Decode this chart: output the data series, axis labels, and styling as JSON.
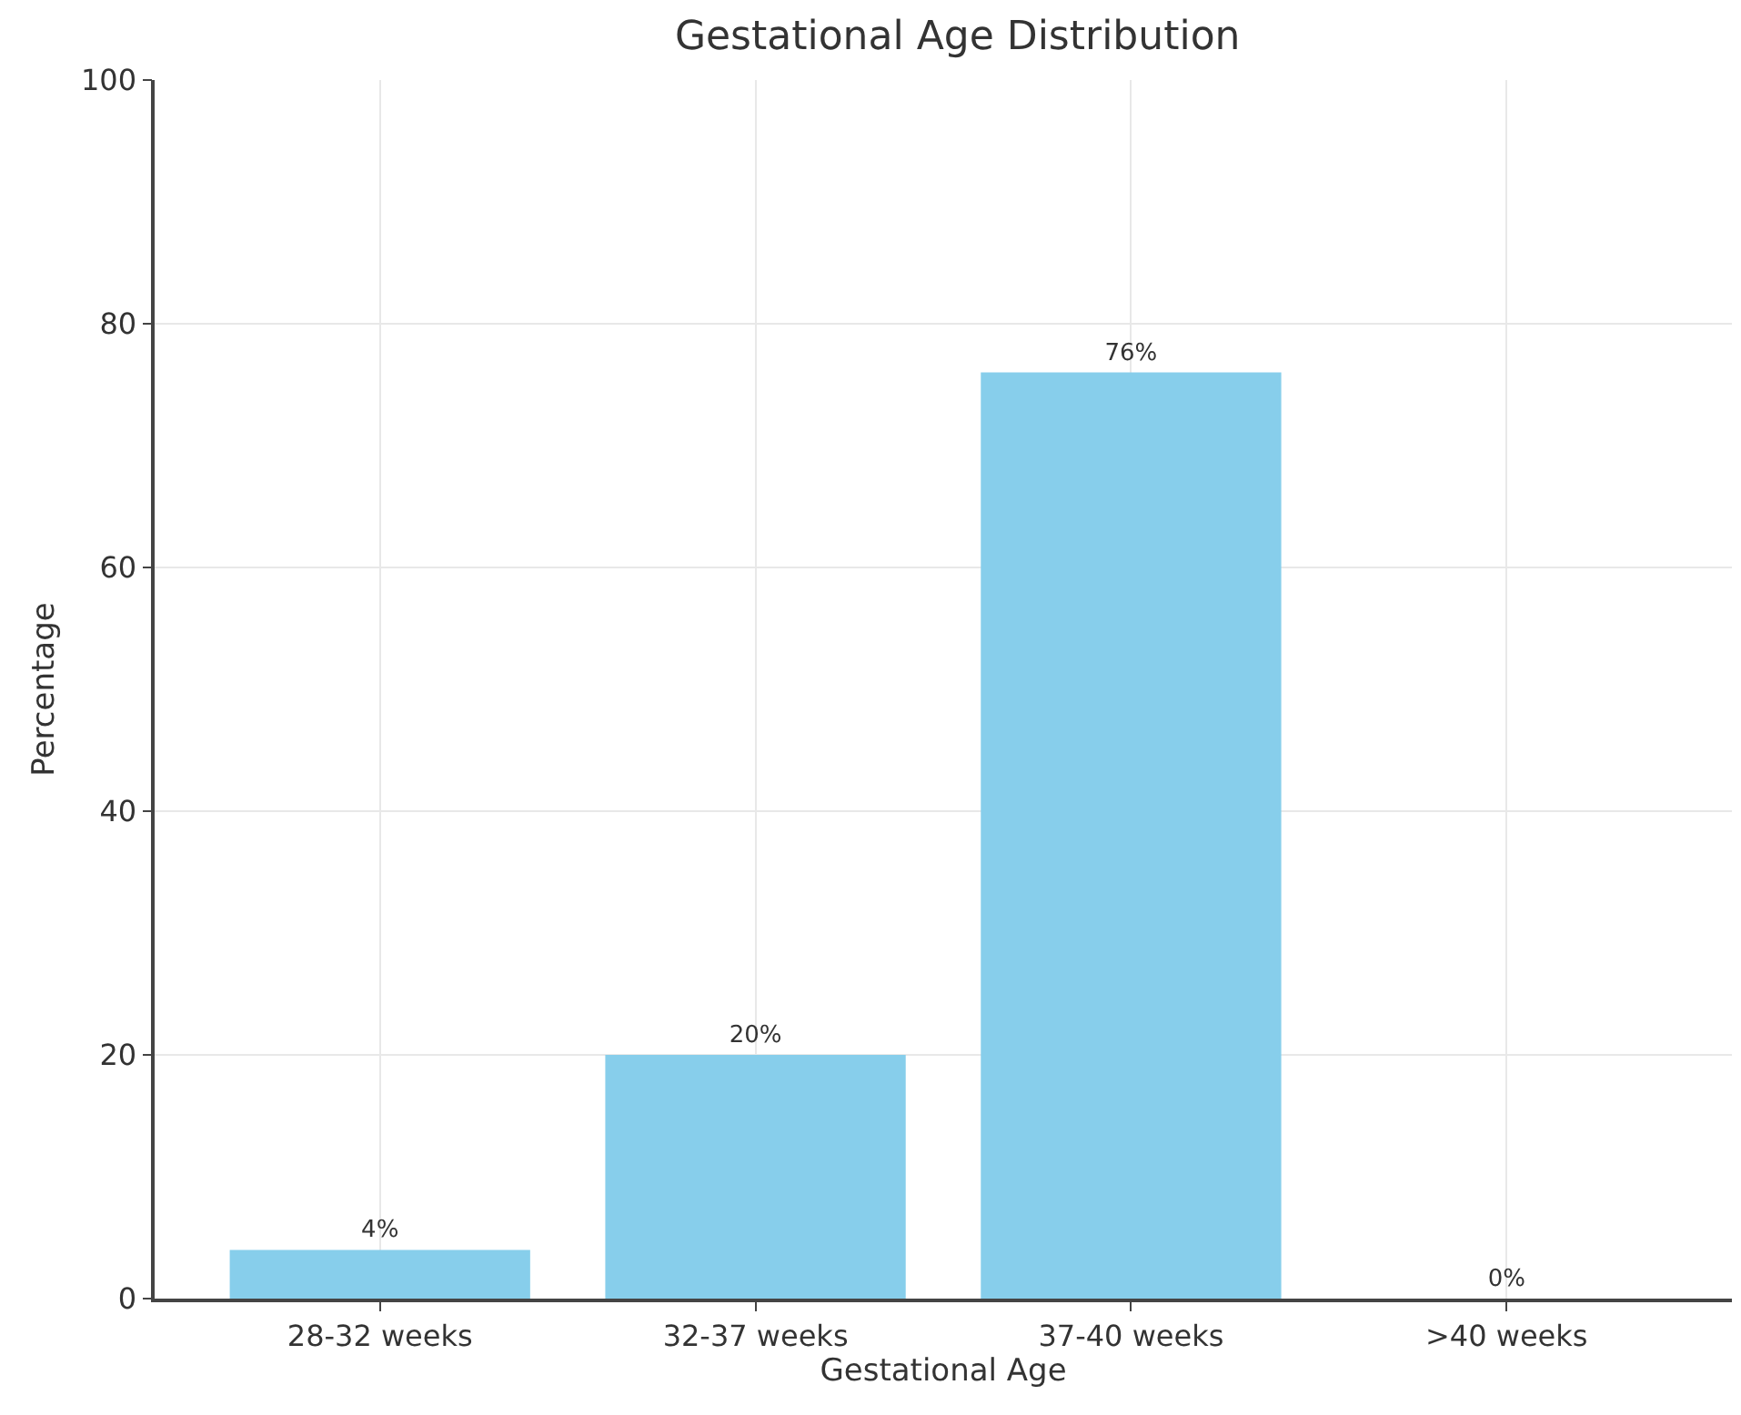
{
  "chart_data": {
    "type": "bar",
    "title": "Gestational Age Distribution",
    "xlabel": "Gestational Age",
    "ylabel": "Percentage",
    "categories": [
      "28-32 weeks",
      "32-37 weeks",
      "37-40 weeks",
      ">40 weeks"
    ],
    "values": [
      4,
      20,
      76,
      0
    ],
    "value_labels": [
      "4%",
      "20%",
      "76%",
      "0%"
    ],
    "color": "#87ceeb",
    "ylim": [
      0,
      100
    ],
    "yticks": [
      0,
      20,
      40,
      60,
      80,
      100
    ],
    "grid": true
  }
}
